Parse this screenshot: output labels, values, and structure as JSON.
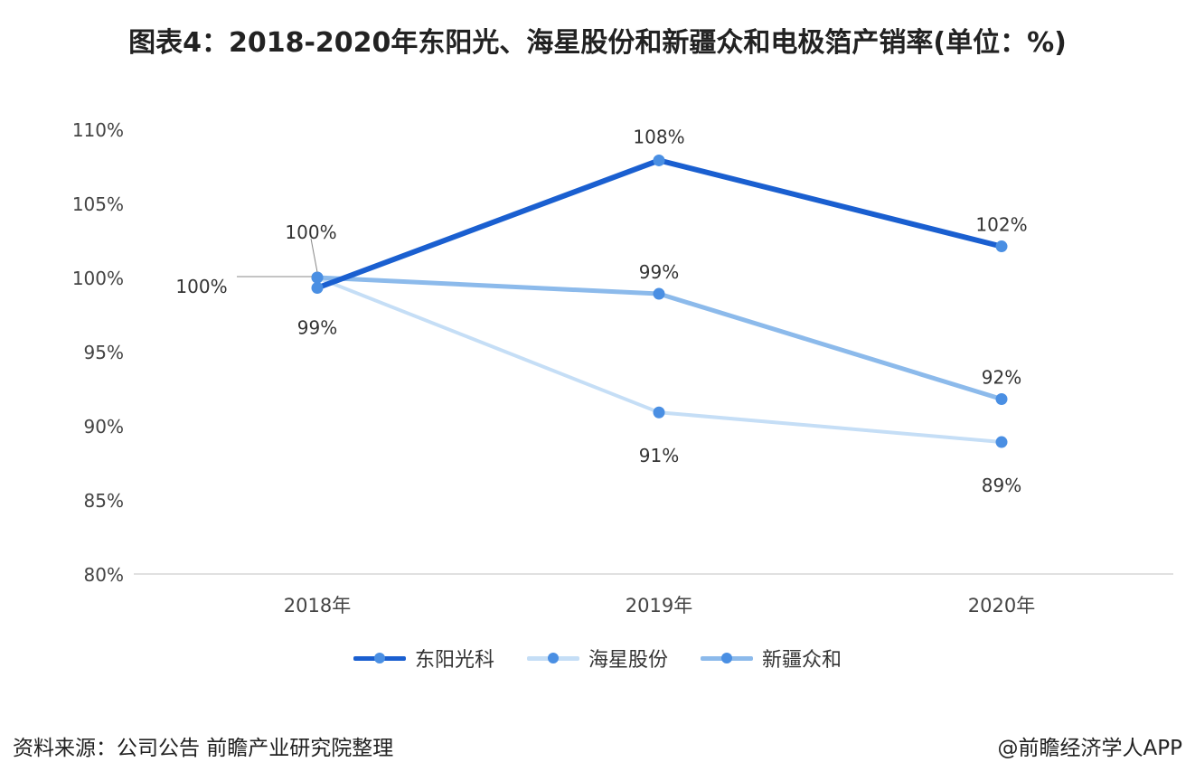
{
  "title": "图表4：2018-2020年东阳光、海星股份和新疆众和电极箔产销率(单位：%)",
  "footer": {
    "source": "资料来源：公司公告 前瞻产业研究院整理",
    "credit": "@前瞻经济学人APP"
  },
  "chart_data": {
    "type": "line",
    "categories": [
      "2018年",
      "2019年",
      "2020年"
    ],
    "series": [
      {
        "name": "东阳光科",
        "values": [
          99.3,
          107.9,
          102.1
        ],
        "labels": [
          "99%",
          "108%",
          "102%"
        ],
        "color": "#1a5fd0"
      },
      {
        "name": "海星股份",
        "values": [
          100.0,
          90.9,
          88.9
        ],
        "labels": [
          "100%",
          "91%",
          "89%"
        ],
        "color": "#c5def6"
      },
      {
        "name": "新疆众和",
        "values": [
          100.0,
          98.9,
          91.8
        ],
        "labels": [
          "100%",
          "99%",
          "92%"
        ],
        "color": "#8cbaeb"
      }
    ],
    "yticks": [
      "80%",
      "85%",
      "90%",
      "95%",
      "100%",
      "105%",
      "110%"
    ],
    "ylim": [
      80,
      110
    ],
    "ylabel": "",
    "xlabel": "",
    "grid": false,
    "legend": "bottom",
    "marker_color": "#4a8fe3"
  }
}
